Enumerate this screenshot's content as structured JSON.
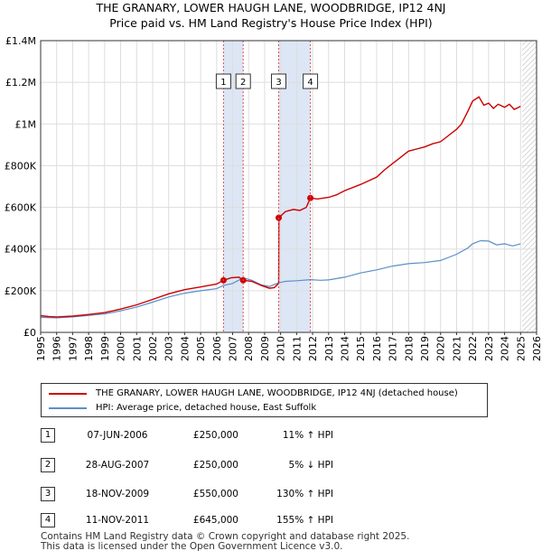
{
  "title_lines": [
    "THE GRANARY, LOWER HAUGH LANE, WOODBRIDGE, IP12 4NJ",
    "Price paid vs. HM Land Registry's House Price Index (HPI)"
  ],
  "colors": {
    "property": "#cc0000",
    "hpi": "#5b8fc7",
    "shade": "#dde6f5",
    "marker_line": "#e05050",
    "grid": "#dddddd"
  },
  "chart_data": {
    "type": "line",
    "x_range": [
      1995,
      2026
    ],
    "y_range": [
      0,
      1400000
    ],
    "yticks": [
      {
        "value": 0,
        "label": "£0"
      },
      {
        "value": 200000,
        "label": "£200K"
      },
      {
        "value": 400000,
        "label": "£400K"
      },
      {
        "value": 600000,
        "label": "£600K"
      },
      {
        "value": 800000,
        "label": "£800K"
      },
      {
        "value": 1000000,
        "label": "£1M"
      },
      {
        "value": 1200000,
        "label": "£1.2M"
      },
      {
        "value": 1400000,
        "label": "£1.4M"
      }
    ],
    "xticks": [
      "1995",
      "1996",
      "1997",
      "1998",
      "1999",
      "2000",
      "2001",
      "2002",
      "2003",
      "2004",
      "2005",
      "2006",
      "2007",
      "2008",
      "2009",
      "2010",
      "2011",
      "2012",
      "2013",
      "2014",
      "2015",
      "2016",
      "2017",
      "2018",
      "2019",
      "2020",
      "2021",
      "2022",
      "2023",
      "2024",
      "2025",
      "2026"
    ],
    "shaded_ranges": [
      [
        2006.43,
        2007.66
      ],
      [
        2009.88,
        2011.86
      ]
    ],
    "future_hatch_from": 2025.1,
    "series": [
      {
        "name": "THE GRANARY, LOWER HAUGH LANE, WOODBRIDGE, IP12 4NJ (detached house)",
        "points": [
          [
            1995,
            80000
          ],
          [
            1995.5,
            76000
          ],
          [
            1996,
            74000
          ],
          [
            1997,
            78000
          ],
          [
            1998,
            86000
          ],
          [
            1999,
            95000
          ],
          [
            2000,
            112000
          ],
          [
            2001,
            132000
          ],
          [
            2002,
            158000
          ],
          [
            2003,
            185000
          ],
          [
            2004,
            205000
          ],
          [
            2005,
            218000
          ],
          [
            2006,
            232000
          ],
          [
            2006.43,
            250000
          ],
          [
            2006.9,
            262000
          ],
          [
            2007.4,
            265000
          ],
          [
            2007.66,
            250000
          ],
          [
            2008.2,
            245000
          ],
          [
            2008.8,
            225000
          ],
          [
            2009.3,
            212000
          ],
          [
            2009.6,
            215000
          ],
          [
            2009.88,
            235000
          ],
          [
            2009.89,
            550000
          ],
          [
            2010.3,
            580000
          ],
          [
            2010.8,
            590000
          ],
          [
            2011.2,
            585000
          ],
          [
            2011.6,
            600000
          ],
          [
            2011.86,
            645000
          ],
          [
            2012.3,
            640000
          ],
          [
            2013,
            648000
          ],
          [
            2013.5,
            660000
          ],
          [
            2014,
            680000
          ],
          [
            2015,
            710000
          ],
          [
            2016,
            745000
          ],
          [
            2016.5,
            780000
          ],
          [
            2017,
            810000
          ],
          [
            2017.5,
            840000
          ],
          [
            2018,
            870000
          ],
          [
            2018.5,
            880000
          ],
          [
            2019,
            890000
          ],
          [
            2019.5,
            905000
          ],
          [
            2020,
            915000
          ],
          [
            2020.5,
            945000
          ],
          [
            2021,
            975000
          ],
          [
            2021.3,
            1000000
          ],
          [
            2021.7,
            1060000
          ],
          [
            2022,
            1110000
          ],
          [
            2022.4,
            1130000
          ],
          [
            2022.7,
            1090000
          ],
          [
            2023,
            1100000
          ],
          [
            2023.3,
            1075000
          ],
          [
            2023.6,
            1095000
          ],
          [
            2024,
            1080000
          ],
          [
            2024.3,
            1095000
          ],
          [
            2024.6,
            1070000
          ],
          [
            2025,
            1085000
          ]
        ]
      },
      {
        "name": "HPI: Average price, detached house, East Suffolk",
        "points": [
          [
            1995,
            72000
          ],
          [
            1996,
            70000
          ],
          [
            1997,
            74000
          ],
          [
            1998,
            81000
          ],
          [
            1999,
            89000
          ],
          [
            2000,
            103000
          ],
          [
            2001,
            122000
          ],
          [
            2002,
            145000
          ],
          [
            2003,
            170000
          ],
          [
            2004,
            188000
          ],
          [
            2005,
            200000
          ],
          [
            2006,
            210000
          ],
          [
            2006.43,
            225000
          ],
          [
            2007,
            235000
          ],
          [
            2007.66,
            262000
          ],
          [
            2008.2,
            250000
          ],
          [
            2008.8,
            228000
          ],
          [
            2009.3,
            220000
          ],
          [
            2009.88,
            238000
          ],
          [
            2010.3,
            245000
          ],
          [
            2011,
            248000
          ],
          [
            2011.86,
            253000
          ],
          [
            2012.5,
            250000
          ],
          [
            2013,
            252000
          ],
          [
            2014,
            265000
          ],
          [
            2015,
            285000
          ],
          [
            2016,
            300000
          ],
          [
            2017,
            318000
          ],
          [
            2018,
            330000
          ],
          [
            2019,
            335000
          ],
          [
            2020,
            345000
          ],
          [
            2021,
            375000
          ],
          [
            2021.7,
            405000
          ],
          [
            2022,
            425000
          ],
          [
            2022.5,
            440000
          ],
          [
            2023,
            438000
          ],
          [
            2023.5,
            420000
          ],
          [
            2024,
            425000
          ],
          [
            2024.5,
            415000
          ],
          [
            2025,
            425000
          ]
        ]
      }
    ],
    "sales": [
      {
        "num": "1",
        "x": 2006.43,
        "price": 250000,
        "date": "07-JUN-2006",
        "price_label": "£250,000",
        "hpi": "11% ↑ HPI"
      },
      {
        "num": "2",
        "x": 2007.66,
        "price": 250000,
        "date": "28-AUG-2007",
        "price_label": "£250,000",
        "hpi": "5% ↓ HPI"
      },
      {
        "num": "3",
        "x": 2009.88,
        "price": 550000,
        "date": "18-NOV-2009",
        "price_label": "£550,000",
        "hpi": "130% ↑ HPI"
      },
      {
        "num": "4",
        "x": 2011.86,
        "price": 645000,
        "date": "11-NOV-2011",
        "price_label": "£645,000",
        "hpi": "155% ↑ HPI"
      }
    ]
  },
  "legend": {
    "property_label": "THE GRANARY, LOWER HAUGH LANE, WOODBRIDGE, IP12 4NJ (detached house)",
    "hpi_label": "HPI: Average price, detached house, East Suffolk"
  },
  "footer": [
    "Contains HM Land Registry data © Crown copyright and database right 2025.",
    "This data is licensed under the Open Government Licence v3.0."
  ]
}
